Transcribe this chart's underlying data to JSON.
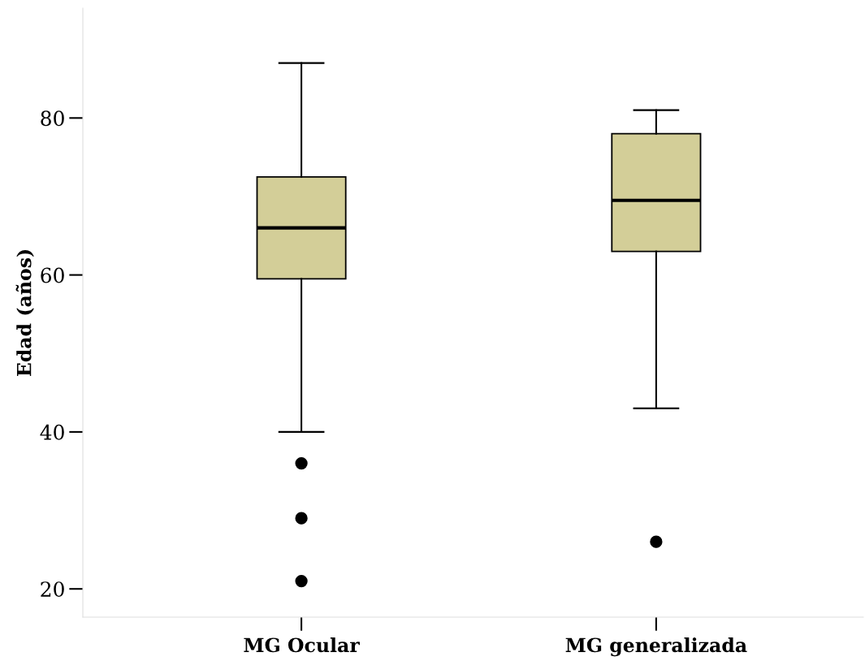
{
  "chart_data": {
    "type": "box",
    "ylabel": "Edad (años)",
    "categories": [
      "MG Ocular",
      "MG generalizada"
    ],
    "boxes": [
      {
        "low": 40,
        "q1": 59.5,
        "median": 66,
        "q3": 72.5,
        "high": 87,
        "outliers": [
          36,
          29,
          21
        ]
      },
      {
        "low": 43,
        "q1": 63,
        "median": 69.5,
        "q3": 78,
        "high": 81,
        "outliers": [
          26
        ]
      }
    ],
    "color": "#d3ce98",
    "ylim": [
      16.4,
      94
    ],
    "yticks": [
      20,
      40,
      60,
      80
    ],
    "grid": false,
    "legend": false
  }
}
